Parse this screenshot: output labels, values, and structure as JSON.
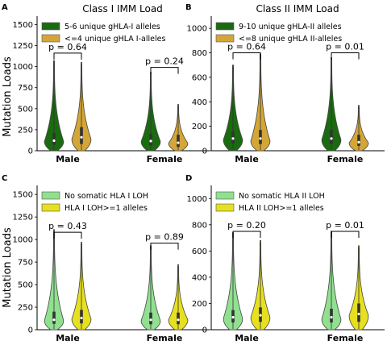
{
  "figure": {
    "column_titles": [
      "Class I IMM Load",
      "Class II IMM Load"
    ],
    "row_ylabels": [
      "Mutation Loads",
      "Mutation Loads"
    ]
  },
  "chart_data": [
    {
      "panel": "A",
      "type": "violin",
      "categories": [
        "Male",
        "Female"
      ],
      "ylim": [
        0,
        1600
      ],
      "yticks": [
        0,
        250,
        500,
        750,
        1000,
        1250,
        1500
      ],
      "legend_position": "top-left",
      "series": [
        {
          "name": "5-6 unique gHLA-I alleles",
          "color": "#1a6b10",
          "max": [
            1070,
            930
          ],
          "median": [
            120,
            115
          ],
          "q1": [
            70,
            65
          ],
          "q3": [
            210,
            200
          ],
          "bulge": [
            110,
            110
          ]
        },
        {
          "name": "<=4 unique gHLA I-alleles",
          "color": "#d4a637",
          "max": [
            1050,
            550
          ],
          "median": [
            160,
            95
          ],
          "q1": [
            80,
            45
          ],
          "q3": [
            280,
            190
          ],
          "bulge": [
            140,
            90
          ]
        }
      ],
      "pvalues": [
        {
          "label": "p = 0.64",
          "y": 1160
        },
        {
          "label": "p = 0.24",
          "y": 990
        }
      ]
    },
    {
      "panel": "B",
      "type": "violin",
      "categories": [
        "Male",
        "Female"
      ],
      "ylim": [
        0,
        1100
      ],
      "yticks": [
        0,
        200,
        400,
        600,
        800,
        1000
      ],
      "legend_position": "top-left",
      "series": [
        {
          "name": "9-10 unique gHLA-II alleles",
          "color": "#1a6b10",
          "max": [
            700,
            760
          ],
          "median": [
            100,
            100
          ],
          "q1": [
            60,
            55
          ],
          "q3": [
            160,
            170
          ],
          "bulge": [
            90,
            90
          ]
        },
        {
          "name": "<=8 unique gHLA II-alleles",
          "color": "#d4a637",
          "max": [
            790,
            370
          ],
          "median": [
            100,
            70
          ],
          "q1": [
            55,
            40
          ],
          "q3": [
            170,
            130
          ],
          "bulge": [
            80,
            65
          ]
        }
      ],
      "pvalues": [
        {
          "label": "p = 0.64",
          "y": 800
        },
        {
          "label": "p = 0.01",
          "y": 800
        }
      ]
    },
    {
      "panel": "C",
      "type": "violin",
      "categories": [
        "Male",
        "Female"
      ],
      "ylim": [
        0,
        1600
      ],
      "yticks": [
        0,
        250,
        500,
        750,
        1000,
        1250,
        1500
      ],
      "legend_position": "top-left",
      "series": [
        {
          "name": "No somatic HLA I LOH",
          "color": "#90e090",
          "max": [
            1110,
            930
          ],
          "median": [
            110,
            110
          ],
          "q1": [
            65,
            60
          ],
          "q3": [
            200,
            190
          ],
          "bulge": [
            100,
            100
          ]
        },
        {
          "name": "HLA I LOH>=1 alleles",
          "color": "#e6e020",
          "max": [
            970,
            720
          ],
          "median": [
            130,
            110
          ],
          "q1": [
            70,
            60
          ],
          "q3": [
            220,
            190
          ],
          "bulge": [
            120,
            110
          ]
        }
      ],
      "pvalues": [
        {
          "label": "p = 0.43",
          "y": 1080
        },
        {
          "label": "p = 0.89",
          "y": 960
        }
      ]
    },
    {
      "panel": "D",
      "type": "violin",
      "categories": [
        "Male",
        "Female"
      ],
      "ylim": [
        0,
        1100
      ],
      "yticks": [
        0,
        200,
        400,
        600,
        800,
        1000
      ],
      "legend_position": "top-left",
      "series": [
        {
          "name": "No somatic HLA II LOH",
          "color": "#90e090",
          "max": [
            740,
            750
          ],
          "median": [
            95,
            95
          ],
          "q1": [
            55,
            55
          ],
          "q3": [
            150,
            160
          ],
          "bulge": [
            85,
            80
          ]
        },
        {
          "name": "HLA II LOH>=1 alleles",
          "color": "#e6e020",
          "max": [
            680,
            640
          ],
          "median": [
            110,
            120
          ],
          "q1": [
            60,
            60
          ],
          "q3": [
            170,
            200
          ],
          "bulge": [
            95,
            110
          ]
        }
      ],
      "pvalues": [
        {
          "label": "p = 0.20",
          "y": 750
        },
        {
          "label": "p = 0.01",
          "y": 750
        }
      ]
    }
  ]
}
